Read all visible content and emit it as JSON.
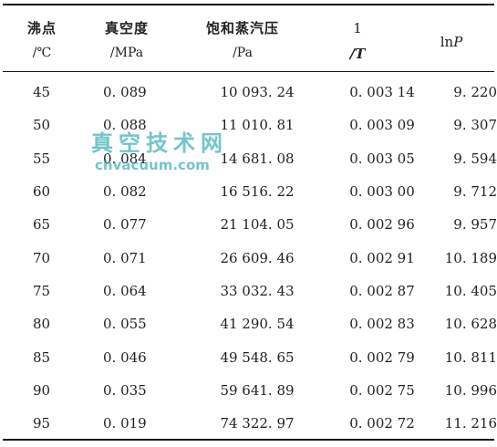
{
  "headers": {
    "boiling_point": {
      "name": "沸点",
      "unit": "/℃"
    },
    "vacuum": {
      "name": "真空度",
      "unit": "/MPa"
    },
    "vapor_pressure": {
      "name": "饱和蒸汽压",
      "unit": "/Pa"
    },
    "inverse_t": {
      "numerator": "1",
      "denominator": "/T"
    },
    "lnp": {
      "prefix": "ln",
      "var": "P"
    }
  },
  "rows": [
    [
      "45",
      "0. 089",
      "10 093. 24",
      "0. 003 14",
      "9. 220"
    ],
    [
      "50",
      "0. 088",
      "11 010. 81",
      "0. 003 09",
      "9. 307"
    ],
    [
      "55",
      "0. 084",
      "14 681. 08",
      "0. 003 05",
      "9. 594"
    ],
    [
      "60",
      "0. 082",
      "16 516. 22",
      "0. 003 00",
      "9. 712"
    ],
    [
      "65",
      "0. 077",
      "21 104. 05",
      "0. 002 96",
      "9. 957"
    ],
    [
      "70",
      "0. 071",
      "26 609. 46",
      "0. 002 91",
      "10. 189"
    ],
    [
      "75",
      "0. 064",
      "33 032. 43",
      "0. 002 87",
      "10. 405"
    ],
    [
      "80",
      "0. 055",
      "41 290. 54",
      "0. 002 83",
      "10. 628"
    ],
    [
      "85",
      "0. 046",
      "49 548. 65",
      "0. 002 79",
      "10. 811"
    ],
    [
      "90",
      "0. 035",
      "59 641. 89",
      "0. 002 75",
      "10. 996"
    ],
    [
      "95",
      "0. 019",
      "74 322. 97",
      "0. 002 72",
      "11. 216"
    ]
  ],
  "watermark": {
    "cn": "真空技术网",
    "en": "chvacuum.com"
  }
}
